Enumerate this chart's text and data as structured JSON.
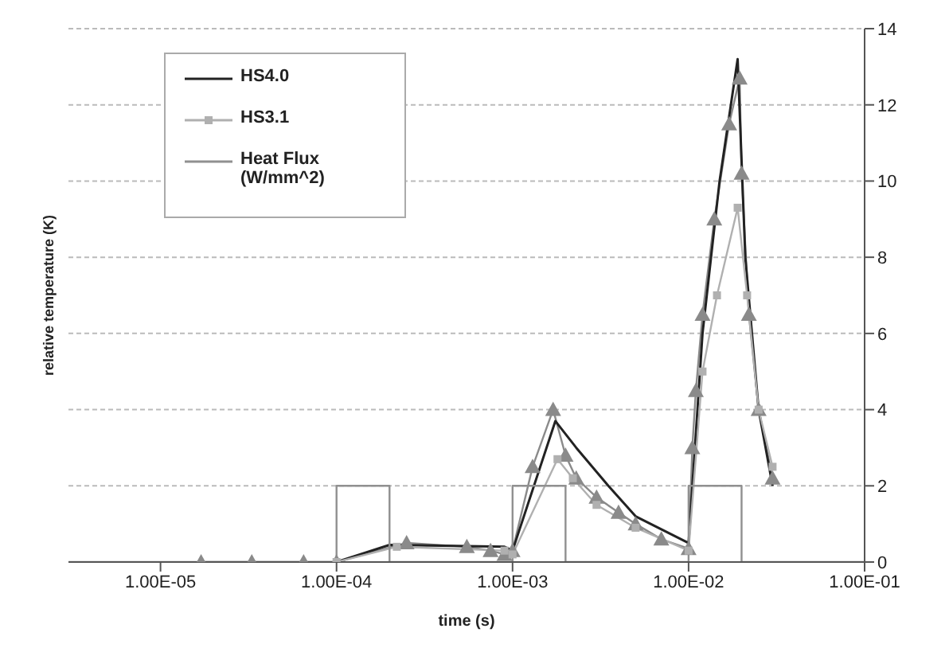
{
  "chart_data": {
    "type": "line",
    "xlabel": "time (s)",
    "ylabel": "relative temperature (K)",
    "log": "x",
    "grid": "y",
    "legend": "top left",
    "line_style": "solid",
    "xlim": [
      3e-06,
      0.1
    ],
    "xticks": [
      {
        "value": 1e-05,
        "label": "1.00E-05"
      },
      {
        "value": 0.0001,
        "label": "1.00E-04"
      },
      {
        "value": 0.001,
        "label": "1.00E-03"
      },
      {
        "value": 0.01,
        "label": "1.00E-02"
      },
      {
        "value": 0.1,
        "label": "1.00E-01"
      }
    ],
    "ylim": [
      0,
      14
    ],
    "yticks": [
      0,
      2,
      4,
      6,
      8,
      10,
      12,
      14
    ],
    "series": [
      {
        "color": "#8a8a8a",
        "marker": "triangle",
        "x": [
          1.7e-05,
          3.3e-05,
          6.5e-05,
          0.0001,
          0.00025,
          0.00055,
          0.00075,
          0.0009,
          0.001,
          0.0013,
          0.0017,
          0.002,
          0.0023,
          0.003,
          0.004,
          0.005,
          0.007,
          0.01,
          0.0105,
          0.011,
          0.012,
          0.014,
          0.017,
          0.0195,
          0.02,
          0.022,
          0.025,
          0.03
        ],
        "values": [
          0,
          0,
          0,
          0,
          0.5,
          0.4,
          0.3,
          0.2,
          0.3,
          2.5,
          4.0,
          2.8,
          2.2,
          1.7,
          1.3,
          1.0,
          0.6,
          0.35,
          3.0,
          4.5,
          6.5,
          9.0,
          11.5,
          12.7,
          10.2,
          6.5,
          4.0,
          2.2
        ]
      },
      {
        "name": "HS4.0",
        "color": "#222222",
        "marker": "none",
        "x": [
          0.0001,
          0.0002,
          0.0009,
          0.001,
          0.00175,
          0.0023,
          0.0035,
          0.005,
          0.01,
          0.012,
          0.015,
          0.019,
          0.021,
          0.025,
          0.03
        ],
        "values": [
          0,
          0.45,
          0.4,
          0.3,
          3.7,
          3.0,
          2.0,
          1.2,
          0.5,
          6.0,
          10.0,
          13.2,
          8.0,
          4.0,
          2.0
        ]
      },
      {
        "name": "HS3.1",
        "color": "#b0b0b0",
        "marker": "square",
        "x": [
          0.0001,
          0.00022,
          0.0009,
          0.001,
          0.0018,
          0.0022,
          0.003,
          0.005,
          0.01,
          0.012,
          0.0145,
          0.019,
          0.0215,
          0.025,
          0.03
        ],
        "values": [
          0,
          0.4,
          0.3,
          0.2,
          2.7,
          2.2,
          1.5,
          0.9,
          0.3,
          5.0,
          7.0,
          9.3,
          7.0,
          4.0,
          2.5
        ]
      },
      {
        "name": "Heat Flux (W/mm^2)",
        "color": "#909090",
        "marker": "none",
        "x": [
          3e-06,
          0.0001,
          0.0001,
          0.0002,
          0.0002,
          0.001,
          0.001,
          0.002,
          0.002,
          0.01,
          0.01,
          0.02,
          0.02,
          0.1
        ],
        "values": [
          0,
          0,
          2,
          2,
          0,
          0,
          2,
          2,
          0,
          0,
          2,
          2,
          0,
          0
        ]
      }
    ]
  }
}
